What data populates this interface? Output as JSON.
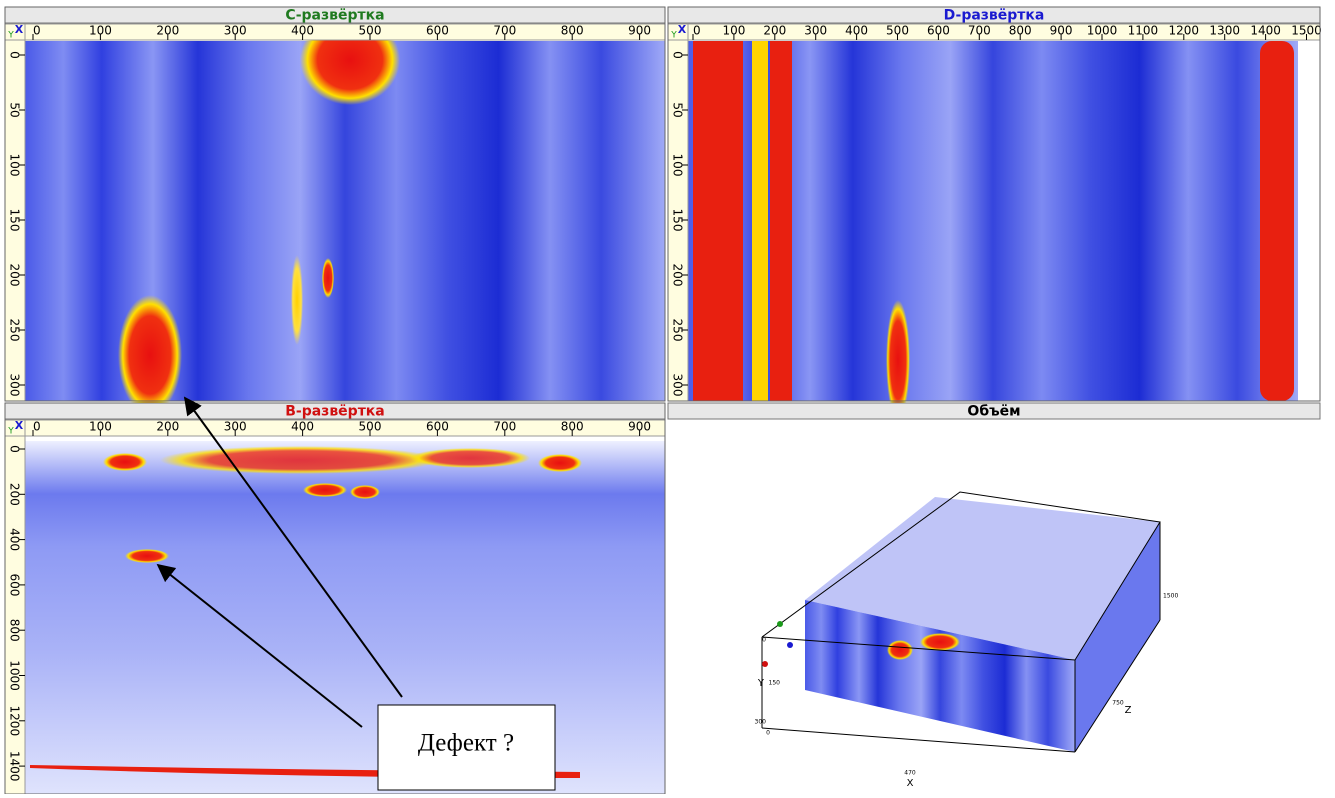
{
  "panels": [
    {
      "title": "С-развёртка",
      "title_color": "#1f7a1f",
      "corner": [
        "X",
        "Y"
      ],
      "xticks": [
        0,
        100,
        200,
        300,
        400,
        500,
        600,
        700,
        800,
        900
      ],
      "yticks": [
        0,
        50,
        100,
        150,
        200,
        250,
        300
      ]
    },
    {
      "title": "D-развёртка",
      "title_color": "#1a1ad0",
      "corner": [
        "X",
        "Y"
      ],
      "xticks": [
        0,
        100,
        200,
        300,
        400,
        500,
        600,
        700,
        800,
        900,
        1000,
        1100,
        1200,
        1300,
        1400,
        1500
      ],
      "yticks": [
        0,
        50,
        100,
        150,
        200,
        250,
        300
      ]
    },
    {
      "title": "B-развёртка",
      "title_color": "#d01010",
      "corner": [
        "X",
        "Y"
      ],
      "xticks": [
        0,
        100,
        200,
        300,
        400,
        500,
        600,
        700,
        800,
        900
      ],
      "yticks": [
        0,
        200,
        400,
        600,
        800,
        1000,
        1200,
        1400
      ]
    }
  ],
  "volume": {
    "title": "Объём",
    "title_color": "#000000",
    "labels": [
      "0",
      "Y",
      "150",
      "300",
      "0",
      "470",
      "X",
      "750",
      "Z",
      "1500"
    ]
  },
  "annotation": "Дефект ?"
}
